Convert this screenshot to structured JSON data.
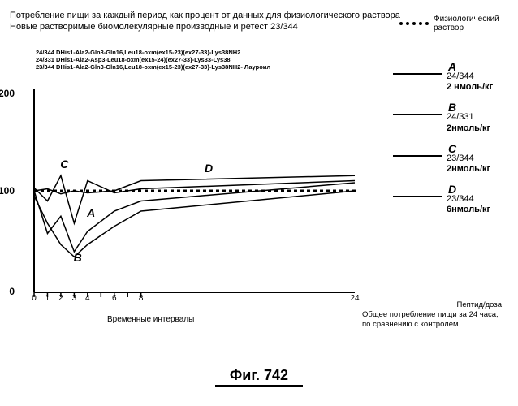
{
  "title_line1": "Потребление пищи за каждый период как процент от данных для физиологического раствора",
  "title_line2": "Новые растворимые биомолекулярные производные и ретест 23/344",
  "saline_label": "Физиологический раствор",
  "chart": {
    "y_max": 200,
    "y_mid": 100,
    "y_min": 0,
    "x_ticks": [
      0,
      1,
      2,
      3,
      4,
      6,
      8,
      24
    ],
    "x_axis_label": "Временные интервалы",
    "compounds": [
      "24/344 DHis1-Ala2-Gln3-Gln16,Leu18-oxm(ex15-23)(ex27-33)-Lys38NH2",
      "24/331 DHis1-Ala2-Asp3-Leu18-oxm(ex15-24)(ex27-33)-Lys33-Lys38",
      "23/344 DHis1-Ala2-Gln3-Gln16,Leu18-oxm(ex15-23)(ex27-33)-Lys38NH2- Лауроил"
    ],
    "saline_y": 100,
    "series": {
      "A": {
        "points": [
          [
            0,
            100
          ],
          [
            1,
            58
          ],
          [
            2,
            75
          ],
          [
            3,
            40
          ],
          [
            4,
            60
          ],
          [
            6,
            80
          ],
          [
            8,
            90
          ],
          [
            24,
            108
          ]
        ],
        "letter_pos": [
          4.2,
          74
        ]
      },
      "B": {
        "points": [
          [
            0,
            95
          ],
          [
            1,
            68
          ],
          [
            2,
            47
          ],
          [
            3,
            35
          ],
          [
            4,
            47
          ],
          [
            6,
            65
          ],
          [
            8,
            80
          ],
          [
            24,
            100
          ]
        ],
        "letter_pos": [
          3.2,
          30
        ]
      },
      "C": {
        "points": [
          [
            0,
            103
          ],
          [
            1,
            90
          ],
          [
            2,
            115
          ],
          [
            3,
            68
          ],
          [
            4,
            110
          ],
          [
            6,
            98
          ],
          [
            8,
            102
          ],
          [
            24,
            110
          ]
        ],
        "letter_pos": [
          2.2,
          122
        ]
      },
      "D": {
        "points": [
          [
            0,
            100
          ],
          [
            1,
            102
          ],
          [
            2,
            97
          ],
          [
            3,
            100
          ],
          [
            4,
            98
          ],
          [
            6,
            100
          ],
          [
            8,
            110
          ],
          [
            24,
            115
          ]
        ],
        "letter_pos": [
          13,
          118
        ]
      }
    },
    "stroke_color": "#000000",
    "stroke_width": 1.5,
    "axis_color": "#000000"
  },
  "legend": [
    {
      "letter": "A",
      "id": "24/344",
      "dose": "2 нмоль/кг"
    },
    {
      "letter": "B",
      "id": "24/331",
      "dose": "2нмоль/кг"
    },
    {
      "letter": "C",
      "id": "23/344",
      "dose": "2нмоль/кг"
    },
    {
      "letter": "D",
      "id": "23/344",
      "dose": "6нмоль/кг"
    }
  ],
  "dose_header": "Пептид/доза",
  "dose_footer": "Общее потребление пищи за 24 часа, по сравнению с контролем",
  "figure_label": "Фиг.  742"
}
